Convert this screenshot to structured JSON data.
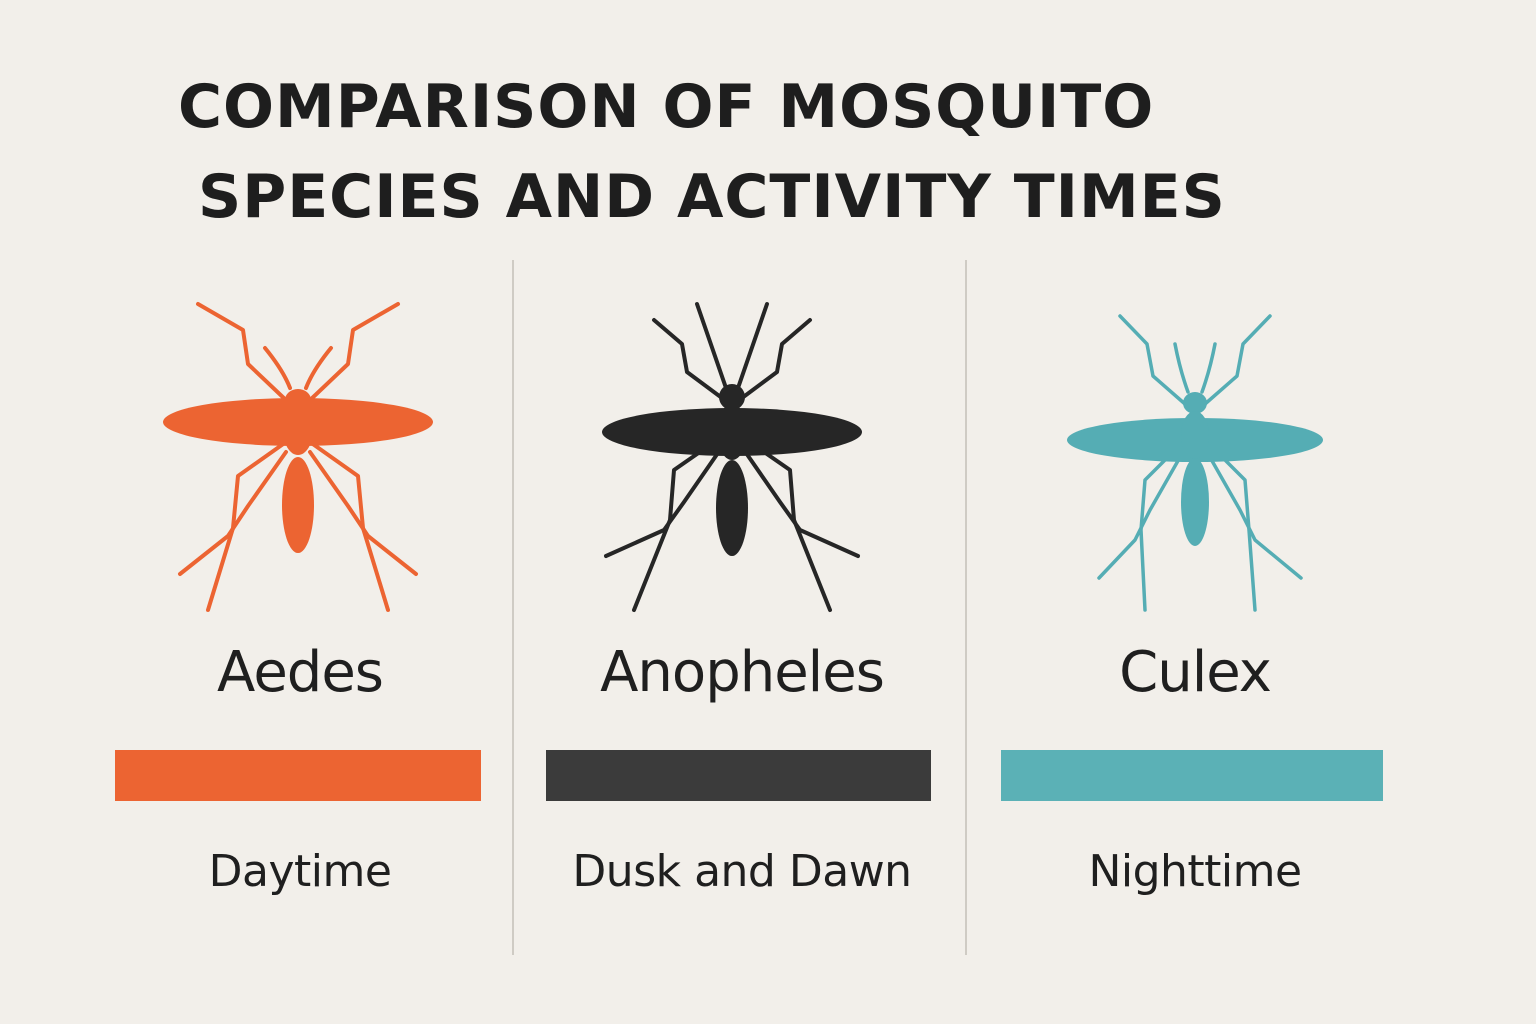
{
  "title": {
    "line1": "COMPARISON OF MOSQUITO",
    "line2": "SPECIES AND ACTIVITY TIMES"
  },
  "species": [
    {
      "name": "Aedes",
      "activity": "Daytime",
      "color": "#ec6432",
      "icon": "mosquito-icon"
    },
    {
      "name": "Anopheles",
      "activity": "Dusk and Dawn",
      "color": "#262626",
      "bar_color": "#3b3b3b",
      "icon": "mosquito-icon"
    },
    {
      "name": "Culex",
      "activity": "Nighttime",
      "color": "#55adb4",
      "bar_color": "#5bb1b6",
      "icon": "mosquito-icon"
    }
  ]
}
